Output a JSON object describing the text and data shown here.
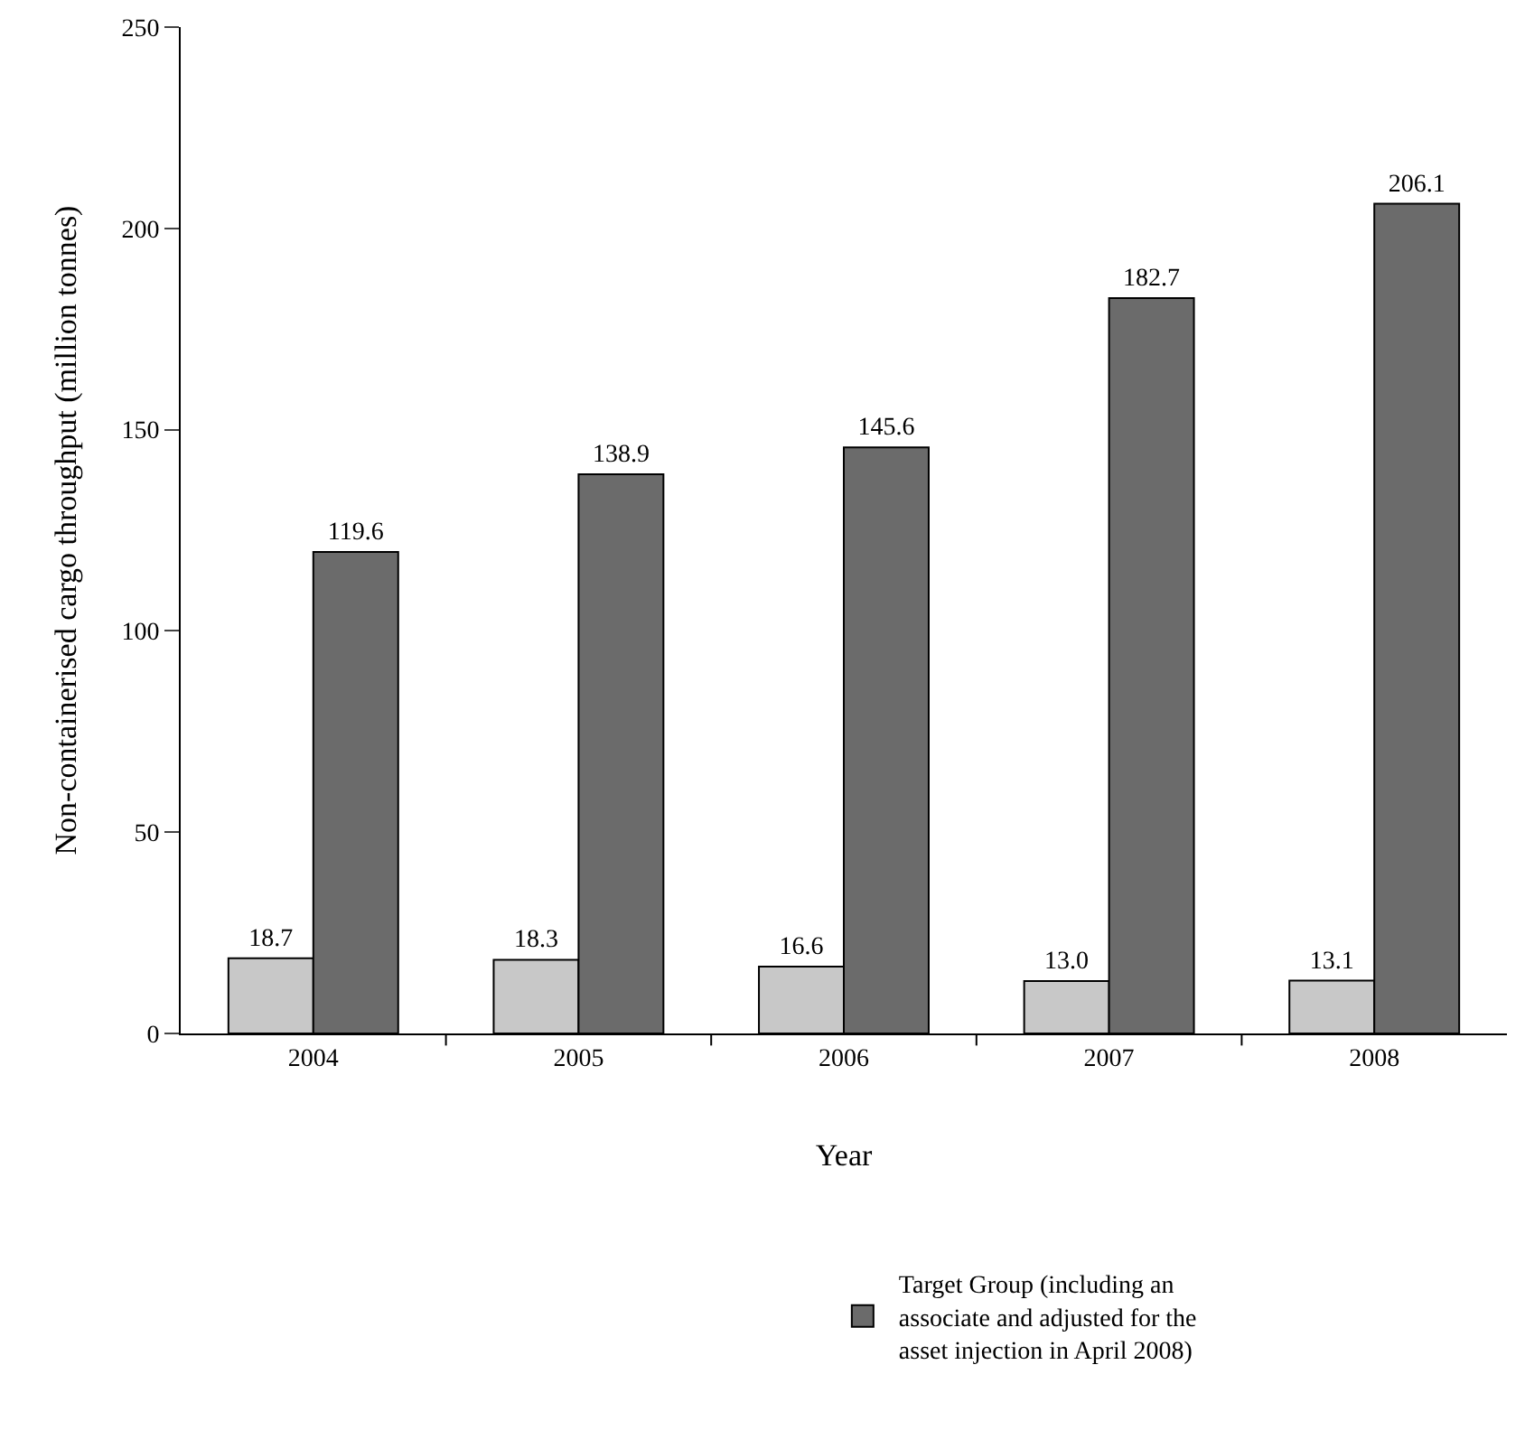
{
  "chart_data": {
    "type": "bar",
    "xlabel": "Year",
    "ylabel": "Non-containerised cargo throughput (million tonnes)",
    "categories": [
      "2004",
      "2005",
      "2006",
      "2007",
      "2008"
    ],
    "series": [
      {
        "color": "#c8c8c8",
        "values": [
          18.7,
          18.3,
          16.6,
          13.0,
          13.1
        ],
        "value_labels": [
          "18.7",
          "18.3",
          "16.6",
          "13.0",
          "13.1"
        ]
      },
      {
        "name": "Target Group (including an associate and adjusted for the asset injection in April 2008)",
        "color": "#6b6b6b",
        "values": [
          119.6,
          138.9,
          145.6,
          182.7,
          206.1
        ],
        "value_labels": [
          "119.6",
          "138.9",
          "145.6",
          "182.7",
          "206.1"
        ]
      }
    ],
    "ylim": [
      0,
      250
    ],
    "yticks": [
      0,
      50,
      100,
      150,
      200,
      250
    ],
    "legend": "bottom"
  }
}
